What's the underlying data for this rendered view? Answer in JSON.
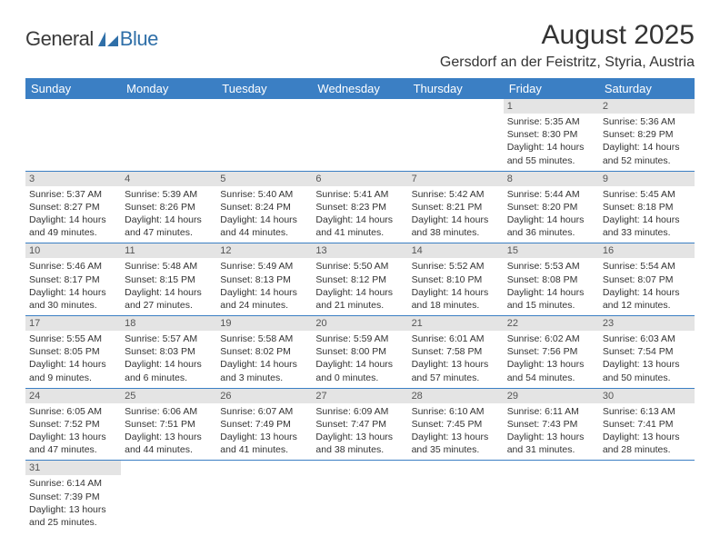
{
  "brand": {
    "general": "General",
    "blue": "Blue"
  },
  "title": "August 2025",
  "subtitle": "Gersdorf an der Feistritz, Styria, Austria",
  "colors": {
    "header_bg": "#3b7fc4",
    "header_text": "#ffffff",
    "daynum_bg": "#e4e4e4",
    "daynum_text": "#555555",
    "cell_border": "#3b7fc4",
    "body_text": "#333333",
    "logo_blue": "#2f6fa8",
    "logo_gray": "#3a3a3a"
  },
  "daynames": [
    "Sunday",
    "Monday",
    "Tuesday",
    "Wednesday",
    "Thursday",
    "Friday",
    "Saturday"
  ],
  "weeks": [
    [
      null,
      null,
      null,
      null,
      null,
      {
        "n": "1",
        "sr": "Sunrise: 5:35 AM",
        "ss": "Sunset: 8:30 PM",
        "dl1": "Daylight: 14 hours",
        "dl2": "and 55 minutes."
      },
      {
        "n": "2",
        "sr": "Sunrise: 5:36 AM",
        "ss": "Sunset: 8:29 PM",
        "dl1": "Daylight: 14 hours",
        "dl2": "and 52 minutes."
      }
    ],
    [
      {
        "n": "3",
        "sr": "Sunrise: 5:37 AM",
        "ss": "Sunset: 8:27 PM",
        "dl1": "Daylight: 14 hours",
        "dl2": "and 49 minutes."
      },
      {
        "n": "4",
        "sr": "Sunrise: 5:39 AM",
        "ss": "Sunset: 8:26 PM",
        "dl1": "Daylight: 14 hours",
        "dl2": "and 47 minutes."
      },
      {
        "n": "5",
        "sr": "Sunrise: 5:40 AM",
        "ss": "Sunset: 8:24 PM",
        "dl1": "Daylight: 14 hours",
        "dl2": "and 44 minutes."
      },
      {
        "n": "6",
        "sr": "Sunrise: 5:41 AM",
        "ss": "Sunset: 8:23 PM",
        "dl1": "Daylight: 14 hours",
        "dl2": "and 41 minutes."
      },
      {
        "n": "7",
        "sr": "Sunrise: 5:42 AM",
        "ss": "Sunset: 8:21 PM",
        "dl1": "Daylight: 14 hours",
        "dl2": "and 38 minutes."
      },
      {
        "n": "8",
        "sr": "Sunrise: 5:44 AM",
        "ss": "Sunset: 8:20 PM",
        "dl1": "Daylight: 14 hours",
        "dl2": "and 36 minutes."
      },
      {
        "n": "9",
        "sr": "Sunrise: 5:45 AM",
        "ss": "Sunset: 8:18 PM",
        "dl1": "Daylight: 14 hours",
        "dl2": "and 33 minutes."
      }
    ],
    [
      {
        "n": "10",
        "sr": "Sunrise: 5:46 AM",
        "ss": "Sunset: 8:17 PM",
        "dl1": "Daylight: 14 hours",
        "dl2": "and 30 minutes."
      },
      {
        "n": "11",
        "sr": "Sunrise: 5:48 AM",
        "ss": "Sunset: 8:15 PM",
        "dl1": "Daylight: 14 hours",
        "dl2": "and 27 minutes."
      },
      {
        "n": "12",
        "sr": "Sunrise: 5:49 AM",
        "ss": "Sunset: 8:13 PM",
        "dl1": "Daylight: 14 hours",
        "dl2": "and 24 minutes."
      },
      {
        "n": "13",
        "sr": "Sunrise: 5:50 AM",
        "ss": "Sunset: 8:12 PM",
        "dl1": "Daylight: 14 hours",
        "dl2": "and 21 minutes."
      },
      {
        "n": "14",
        "sr": "Sunrise: 5:52 AM",
        "ss": "Sunset: 8:10 PM",
        "dl1": "Daylight: 14 hours",
        "dl2": "and 18 minutes."
      },
      {
        "n": "15",
        "sr": "Sunrise: 5:53 AM",
        "ss": "Sunset: 8:08 PM",
        "dl1": "Daylight: 14 hours",
        "dl2": "and 15 minutes."
      },
      {
        "n": "16",
        "sr": "Sunrise: 5:54 AM",
        "ss": "Sunset: 8:07 PM",
        "dl1": "Daylight: 14 hours",
        "dl2": "and 12 minutes."
      }
    ],
    [
      {
        "n": "17",
        "sr": "Sunrise: 5:55 AM",
        "ss": "Sunset: 8:05 PM",
        "dl1": "Daylight: 14 hours",
        "dl2": "and 9 minutes."
      },
      {
        "n": "18",
        "sr": "Sunrise: 5:57 AM",
        "ss": "Sunset: 8:03 PM",
        "dl1": "Daylight: 14 hours",
        "dl2": "and 6 minutes."
      },
      {
        "n": "19",
        "sr": "Sunrise: 5:58 AM",
        "ss": "Sunset: 8:02 PM",
        "dl1": "Daylight: 14 hours",
        "dl2": "and 3 minutes."
      },
      {
        "n": "20",
        "sr": "Sunrise: 5:59 AM",
        "ss": "Sunset: 8:00 PM",
        "dl1": "Daylight: 14 hours",
        "dl2": "and 0 minutes."
      },
      {
        "n": "21",
        "sr": "Sunrise: 6:01 AM",
        "ss": "Sunset: 7:58 PM",
        "dl1": "Daylight: 13 hours",
        "dl2": "and 57 minutes."
      },
      {
        "n": "22",
        "sr": "Sunrise: 6:02 AM",
        "ss": "Sunset: 7:56 PM",
        "dl1": "Daylight: 13 hours",
        "dl2": "and 54 minutes."
      },
      {
        "n": "23",
        "sr": "Sunrise: 6:03 AM",
        "ss": "Sunset: 7:54 PM",
        "dl1": "Daylight: 13 hours",
        "dl2": "and 50 minutes."
      }
    ],
    [
      {
        "n": "24",
        "sr": "Sunrise: 6:05 AM",
        "ss": "Sunset: 7:52 PM",
        "dl1": "Daylight: 13 hours",
        "dl2": "and 47 minutes."
      },
      {
        "n": "25",
        "sr": "Sunrise: 6:06 AM",
        "ss": "Sunset: 7:51 PM",
        "dl1": "Daylight: 13 hours",
        "dl2": "and 44 minutes."
      },
      {
        "n": "26",
        "sr": "Sunrise: 6:07 AM",
        "ss": "Sunset: 7:49 PM",
        "dl1": "Daylight: 13 hours",
        "dl2": "and 41 minutes."
      },
      {
        "n": "27",
        "sr": "Sunrise: 6:09 AM",
        "ss": "Sunset: 7:47 PM",
        "dl1": "Daylight: 13 hours",
        "dl2": "and 38 minutes."
      },
      {
        "n": "28",
        "sr": "Sunrise: 6:10 AM",
        "ss": "Sunset: 7:45 PM",
        "dl1": "Daylight: 13 hours",
        "dl2": "and 35 minutes."
      },
      {
        "n": "29",
        "sr": "Sunrise: 6:11 AM",
        "ss": "Sunset: 7:43 PM",
        "dl1": "Daylight: 13 hours",
        "dl2": "and 31 minutes."
      },
      {
        "n": "30",
        "sr": "Sunrise: 6:13 AM",
        "ss": "Sunset: 7:41 PM",
        "dl1": "Daylight: 13 hours",
        "dl2": "and 28 minutes."
      }
    ],
    [
      {
        "n": "31",
        "sr": "Sunrise: 6:14 AM",
        "ss": "Sunset: 7:39 PM",
        "dl1": "Daylight: 13 hours",
        "dl2": "and 25 minutes."
      },
      null,
      null,
      null,
      null,
      null,
      null
    ]
  ]
}
